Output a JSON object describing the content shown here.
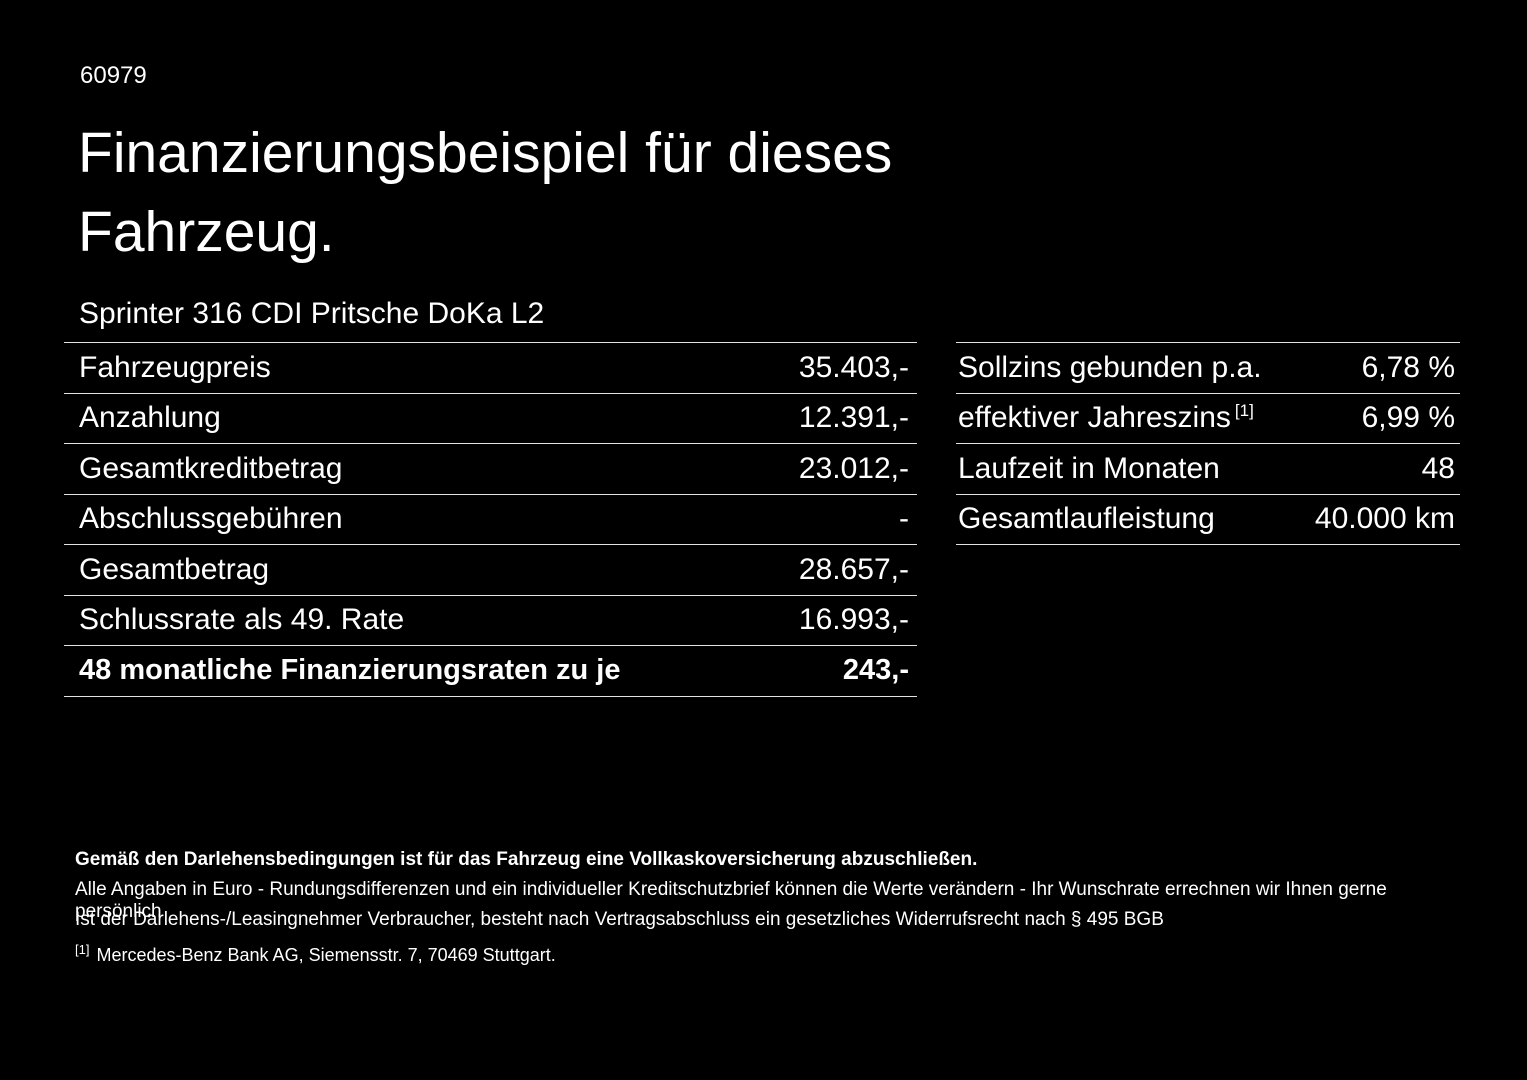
{
  "page": {
    "background_color": "#000000",
    "text_color": "#ffffff"
  },
  "header": {
    "id_number": "60979",
    "title_line1": "Finanzierungsbeispiel für dieses",
    "title_line2": "Fahrzeug.",
    "vehicle_model": "Sprinter 316 CDI Pritsche DoKa L2"
  },
  "left_table": {
    "rows": [
      {
        "label": "Fahrzeugpreis",
        "value": "35.403,-"
      },
      {
        "label": "Anzahlung",
        "value": "12.391,-"
      },
      {
        "label": "Gesamtkreditbetrag",
        "value": "23.012,-"
      },
      {
        "label": "Abschlussgebühren",
        "value": "-"
      },
      {
        "label": "Gesamtbetrag",
        "value": "28.657,-"
      },
      {
        "label": "Schlussrate als 49. Rate",
        "value": "16.993,-"
      },
      {
        "label": "48 monatliche Finanzierungsraten zu je",
        "value": "243,-"
      }
    ]
  },
  "right_table": {
    "rows": [
      {
        "label": "Sollzins gebunden p.a.",
        "value": "6,78 %"
      },
      {
        "label": "effektiver Jahreszins",
        "sup": "[1]",
        "value": "6,99 %"
      },
      {
        "label": "Laufzeit in Monaten",
        "value": "48"
      },
      {
        "label": "Gesamtlaufleistung",
        "value": "40.000 km"
      }
    ]
  },
  "footer": {
    "insurance_note": "Gemäß den Darlehensbedingungen ist für das Fahrzeug eine Vollkaskoversicherung abzuschließen.",
    "disclaimer_line1": "Alle Angaben in Euro - Rundungsdifferenzen und ein individueller Kreditschutzbrief können die Werte verändern - Ihr Wunschrate errechnen wir Ihnen gerne persönlich",
    "disclaimer_line2": "Ist der Darlehens-/Leasingnehmer Verbraucher, besteht nach Vertragsabschluss ein gesetzliches Widerrufsrecht nach § 495 BGB",
    "footnote_marker": "[1]",
    "footnote_text": "Mercedes-Benz Bank AG, Siemensstr. 7, 70469 Stuttgart."
  }
}
